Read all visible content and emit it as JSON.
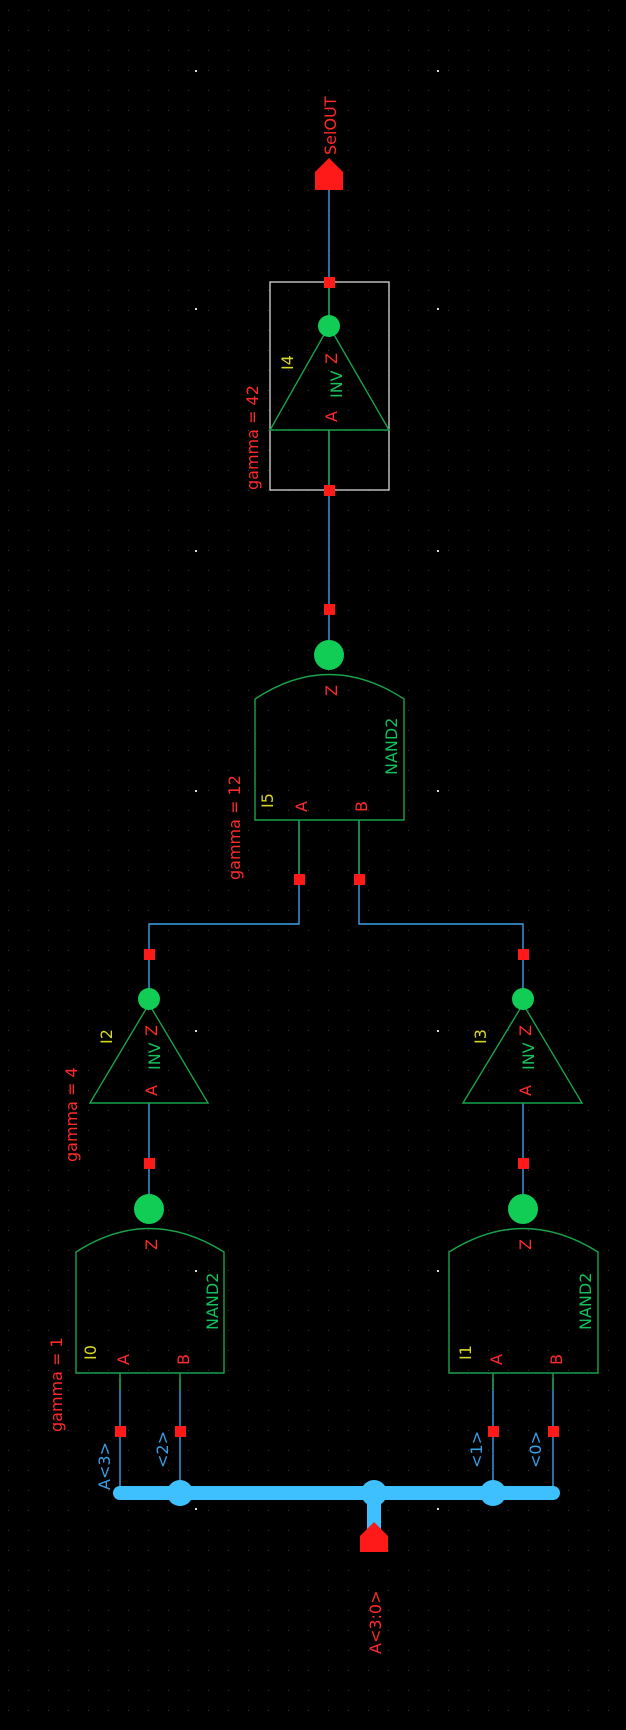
{
  "colors": {
    "background": "#000000",
    "wire": "#3aa0e6",
    "bus": "#3ec0ff",
    "gate_outline": "#19a34a",
    "instance_name": "#d8d820",
    "parameter_text": "#ff2a2a",
    "pin": "#ff1a1a"
  },
  "pins": {
    "input_bus": "A<3:0>",
    "output": "SelOUT"
  },
  "bus_taps": [
    "A<3>",
    "<2>",
    "<1>",
    "<0>"
  ],
  "instances": [
    {
      "id": "I0",
      "cell": "NAND2",
      "pin_a": "A",
      "pin_b": "B",
      "pin_z": "Z",
      "param": "gamma = 1",
      "icon": "nand2-gate-icon"
    },
    {
      "id": "I1",
      "cell": "NAND2",
      "pin_a": "A",
      "pin_b": "B",
      "pin_z": "Z",
      "param": "",
      "icon": "nand2-gate-icon"
    },
    {
      "id": "I2",
      "cell": "INV",
      "pin_a": "A",
      "pin_z": "Z",
      "param": "gamma = 4",
      "icon": "inverter-icon"
    },
    {
      "id": "I3",
      "cell": "INV",
      "pin_a": "A",
      "pin_z": "Z",
      "param": "",
      "icon": "inverter-icon"
    },
    {
      "id": "I5",
      "cell": "NAND2",
      "pin_a": "A",
      "pin_b": "B",
      "pin_z": "Z",
      "param": "gamma = 12",
      "icon": "nand2-gate-icon"
    },
    {
      "id": "I4",
      "cell": "INV",
      "pin_a": "A",
      "pin_z": "Z",
      "param": "gamma = 42",
      "icon": "inverter-icon",
      "selected": true
    }
  ]
}
